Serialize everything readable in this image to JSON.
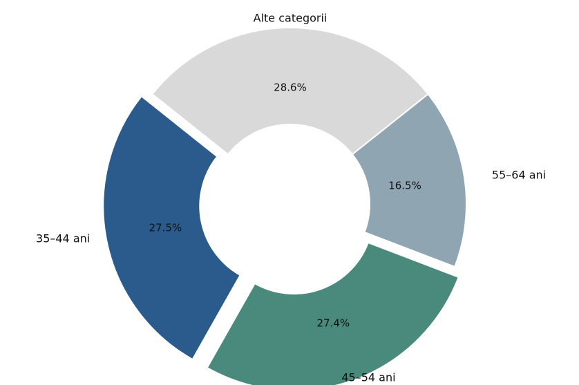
{
  "chart_data": {
    "type": "donut",
    "categories": [
      "Alte categorii",
      "55–64 ani",
      "45–54 ani",
      "35–44 ani"
    ],
    "values": [
      28.6,
      16.5,
      27.4,
      27.5
    ],
    "value_labels": [
      "28.6%",
      "16.5%",
      "27.4%",
      "27.5%"
    ],
    "colors": [
      "#d9d9d9",
      "#8fa5b2",
      "#4a8a7c",
      "#2b5a8c"
    ],
    "explode": [
      false,
      false,
      true,
      true
    ]
  }
}
